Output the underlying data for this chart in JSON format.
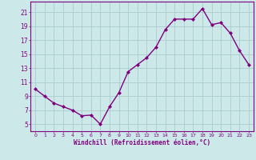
{
  "x": [
    0,
    1,
    2,
    3,
    4,
    5,
    6,
    7,
    8,
    9,
    10,
    11,
    12,
    13,
    14,
    15,
    16,
    17,
    18,
    19,
    20,
    21,
    22,
    23
  ],
  "y": [
    10.0,
    9.0,
    8.0,
    7.5,
    7.0,
    6.2,
    6.3,
    5.0,
    7.5,
    9.5,
    12.5,
    13.5,
    14.5,
    16.0,
    18.5,
    20.0,
    20.0,
    20.0,
    21.5,
    19.2,
    19.5,
    18.0,
    15.5,
    13.5
  ],
  "line_color": "#800080",
  "marker": "D",
  "marker_size": 2.0,
  "line_width": 1.0,
  "bg_color": "#cce8e8",
  "grid_color": "#aacccc",
  "xlabel": "Windchill (Refroidissement éolien,°C)",
  "xlabel_color": "#800080",
  "tick_color": "#800080",
  "yticks": [
    5,
    7,
    9,
    11,
    13,
    15,
    17,
    19,
    21
  ],
  "xtick_labels": [
    "0",
    "1",
    "2",
    "3",
    "4",
    "5",
    "6",
    "7",
    "8",
    "9",
    "10",
    "11",
    "12",
    "13",
    "14",
    "15",
    "16",
    "17",
    "18",
    "19",
    "20",
    "21",
    "22",
    "23"
  ],
  "ylim": [
    4.0,
    22.5
  ],
  "xlim": [
    -0.5,
    23.5
  ],
  "ytick_fontsize": 5.5,
  "xtick_fontsize": 4.5,
  "xlabel_fontsize": 5.5
}
